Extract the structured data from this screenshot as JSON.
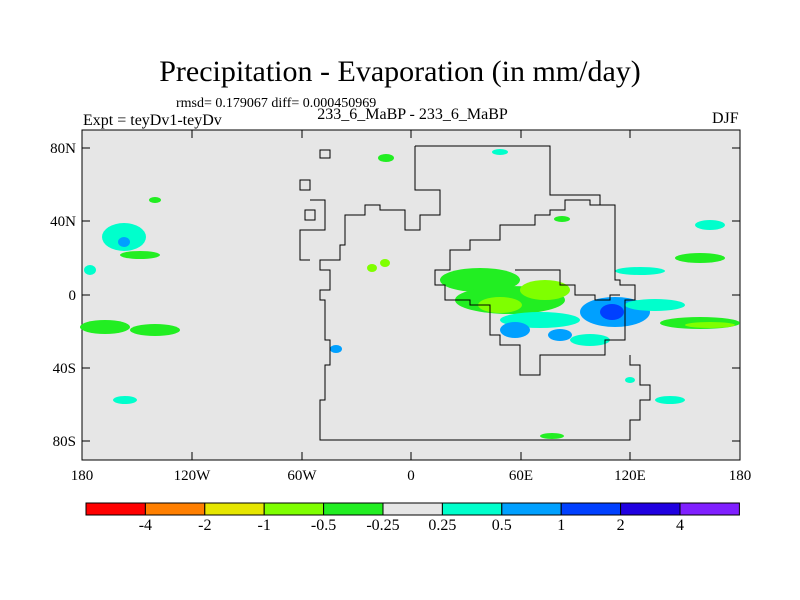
{
  "title": "Precipitation - Evaporation (in mm/day)",
  "stats": "rmsd= 0.179067 diff= 0.000450969",
  "experiment": "Expt = teyDv1-teyDv",
  "subtitle": "233_6_MaBP - 233_6_MaBP",
  "season": "DJF",
  "axes": {
    "y_ticks": [
      "80N",
      "40N",
      "0",
      "40S",
      "80S"
    ],
    "x_ticks": [
      "180",
      "120W",
      "60W",
      "0",
      "60E",
      "120E",
      "180"
    ],
    "lon_range": [
      -180,
      180
    ],
    "lat_range": [
      -90,
      90
    ]
  },
  "colorbar": {
    "labels": [
      "-4",
      "-2",
      "-1",
      "-0.5",
      "-0.25",
      "0.25",
      "0.5",
      "1",
      "2",
      "4"
    ],
    "colors": [
      "#ff0000",
      "#ff7f00",
      "#e6e600",
      "#7fff00",
      "#22ee22",
      "#e6e6e6",
      "#00ffcc",
      "#00a0ff",
      "#0040ff",
      "#2000e0",
      "#8020ff"
    ]
  },
  "background_color": "#e6e6e6"
}
